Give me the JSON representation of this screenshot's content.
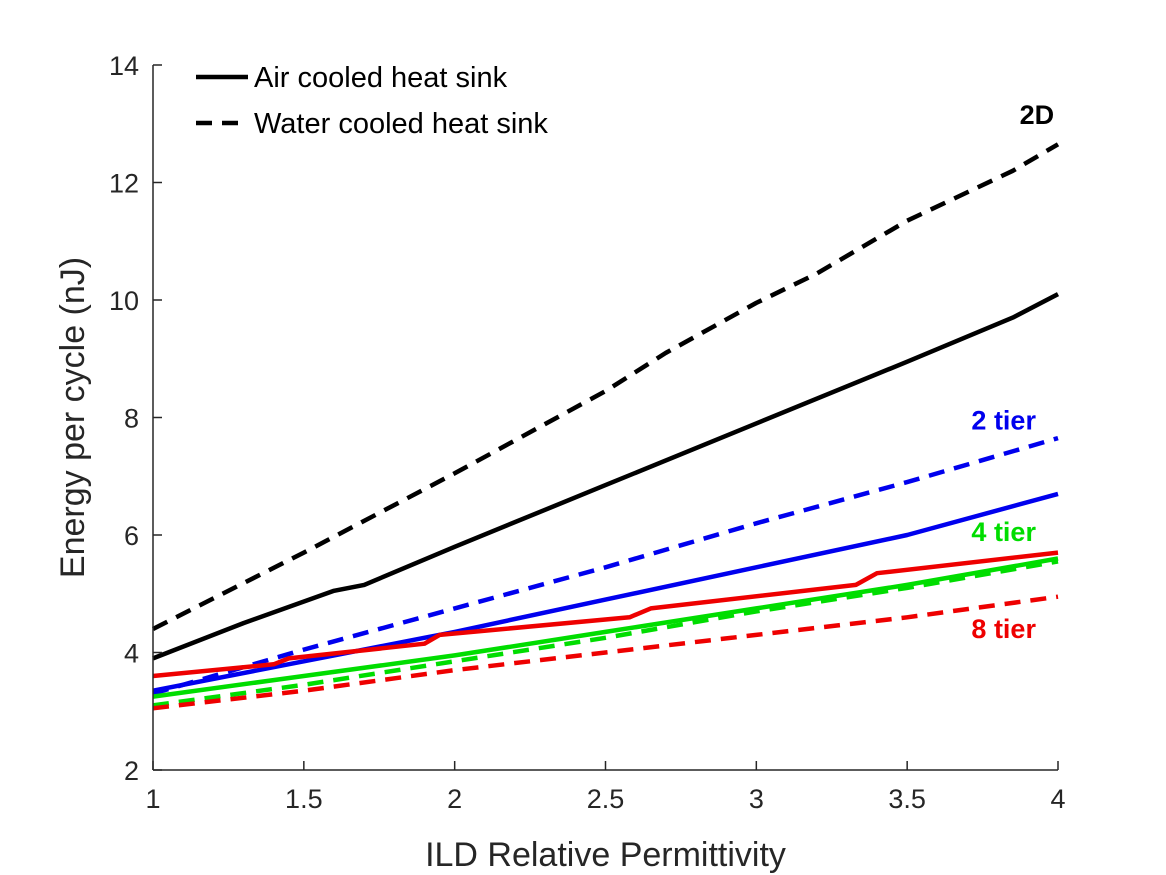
{
  "chart_data": {
    "type": "line",
    "title": "",
    "xlabel": "ILD Relative Permittivity",
    "ylabel": "Energy per cycle (nJ)",
    "xlim": [
      1,
      4
    ],
    "ylim": [
      2,
      14
    ],
    "xticks": [
      1,
      1.5,
      2,
      2.5,
      3,
      3.5,
      4
    ],
    "xtick_labels": [
      "1",
      "1.5",
      "2",
      "2.5",
      "3",
      "3.5",
      "4"
    ],
    "yticks": [
      2,
      4,
      6,
      8,
      10,
      12,
      14
    ],
    "ytick_labels": [
      "2",
      "4",
      "6",
      "8",
      "10",
      "12",
      "14"
    ],
    "grid": false,
    "legend": {
      "position": "top-left",
      "entries": [
        {
          "label": "Air cooled heat sink",
          "style": "solid",
          "color": "#000000"
        },
        {
          "label": "Water cooled heat sink",
          "style": "dashed",
          "color": "#000000"
        }
      ]
    },
    "annotations": [
      {
        "text": "2D",
        "color": "#000000",
        "x": 3.93,
        "y": 13.0
      },
      {
        "text": "2 tier",
        "color": "#0000ee",
        "x": 3.82,
        "y": 7.8
      },
      {
        "text": "4 tier",
        "color": "#00dd00",
        "x": 3.82,
        "y": 5.9
      },
      {
        "text": "8 tier",
        "color": "#ee0000",
        "x": 3.82,
        "y": 4.25
      }
    ],
    "series": [
      {
        "group": "2D",
        "style": "solid",
        "color": "#000000",
        "x": [
          1,
          1.3,
          1.6,
          1.7,
          2,
          2.5,
          3,
          3.5,
          3.85,
          4
        ],
        "y": [
          3.9,
          4.5,
          5.05,
          5.15,
          5.8,
          6.85,
          7.9,
          8.95,
          9.7,
          10.1
        ]
      },
      {
        "group": "2D",
        "style": "dashed",
        "color": "#000000",
        "x": [
          1,
          1.5,
          2,
          2.5,
          2.7,
          3,
          3.2,
          3.5,
          3.85,
          4
        ],
        "y": [
          4.4,
          5.7,
          7.05,
          8.45,
          9.1,
          9.95,
          10.45,
          11.35,
          12.2,
          12.65
        ]
      },
      {
        "group": "2 tier",
        "style": "solid",
        "color": "#0000ee",
        "x": [
          1,
          1.5,
          2,
          2.5,
          3,
          3.5,
          4
        ],
        "y": [
          3.35,
          3.85,
          4.35,
          4.9,
          5.45,
          6.0,
          6.7
        ]
      },
      {
        "group": "2 tier",
        "style": "dashed",
        "color": "#0000ee",
        "x": [
          1,
          1.5,
          2,
          2.5,
          3,
          3.5,
          4
        ],
        "y": [
          3.3,
          4.05,
          4.75,
          5.45,
          6.2,
          6.9,
          7.65
        ]
      },
      {
        "group": "4 tier",
        "style": "solid",
        "color": "#00dd00",
        "x": [
          1,
          1.5,
          2,
          2.5,
          3,
          3.5,
          4
        ],
        "y": [
          3.25,
          3.6,
          3.95,
          4.35,
          4.75,
          5.15,
          5.6
        ]
      },
      {
        "group": "4 tier",
        "style": "dashed",
        "color": "#00dd00",
        "x": [
          1,
          1.5,
          2,
          2.5,
          3,
          3.5,
          4
        ],
        "y": [
          3.1,
          3.45,
          3.85,
          4.25,
          4.7,
          5.1,
          5.55
        ]
      },
      {
        "group": "8 tier",
        "style": "solid",
        "color": "#ee0000",
        "x": [
          1,
          1.4,
          1.45,
          1.9,
          1.95,
          2.58,
          2.65,
          3.33,
          3.4,
          4
        ],
        "y": [
          3.6,
          3.8,
          3.9,
          4.15,
          4.3,
          4.6,
          4.75,
          5.15,
          5.35,
          5.7
        ]
      },
      {
        "group": "8 tier",
        "style": "dashed",
        "color": "#ee0000",
        "x": [
          1,
          1.5,
          2,
          2.5,
          3,
          3.5,
          4
        ],
        "y": [
          3.05,
          3.35,
          3.7,
          4.0,
          4.3,
          4.6,
          4.95
        ]
      }
    ]
  }
}
